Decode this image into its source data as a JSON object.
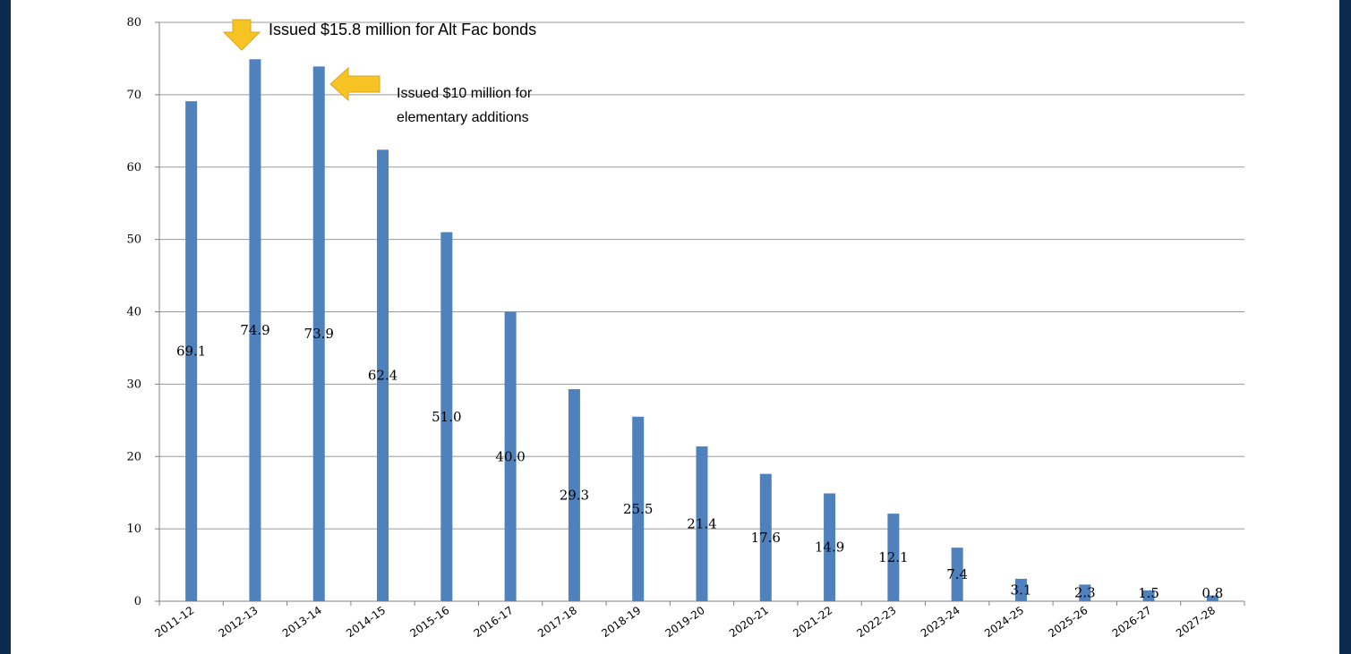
{
  "chart_data": {
    "type": "bar",
    "categories": [
      "2011-12",
      "2012-13",
      "2013-14",
      "2014-15",
      "2015-16",
      "2016-17",
      "2017-18",
      "2018-19",
      "2019-20",
      "2020-21",
      "2021-22",
      "2022-23",
      "2023-24",
      "2024-25",
      "2025-26",
      "2026-27",
      "2027-28"
    ],
    "values": [
      69.1,
      74.9,
      73.9,
      62.4,
      51.0,
      40.0,
      29.3,
      25.5,
      21.4,
      17.6,
      14.9,
      12.1,
      7.4,
      3.1,
      2.3,
      1.5,
      0.8
    ],
    "labels": [
      "69.1",
      "74.9",
      "73.9",
      "62.4",
      "51.0",
      "40.0",
      "29.3",
      "25.5",
      "21.4",
      "17.6",
      "14.9",
      "12.1",
      "7.4",
      "3.1",
      "2.3",
      "1.5",
      "0.8"
    ],
    "yticks": [
      "0",
      "10",
      "20",
      "30",
      "40",
      "50",
      "60",
      "70",
      "80"
    ],
    "ylim": [
      0,
      80
    ],
    "grid": true,
    "bar_color": "#4f81bd",
    "annotations": {
      "first": "Issued $15.8 million for Alt Fac bonds",
      "second_line1": "Issued $10  million for",
      "second_line2": "elementary additions"
    },
    "arrow_color": "#f7c325"
  }
}
